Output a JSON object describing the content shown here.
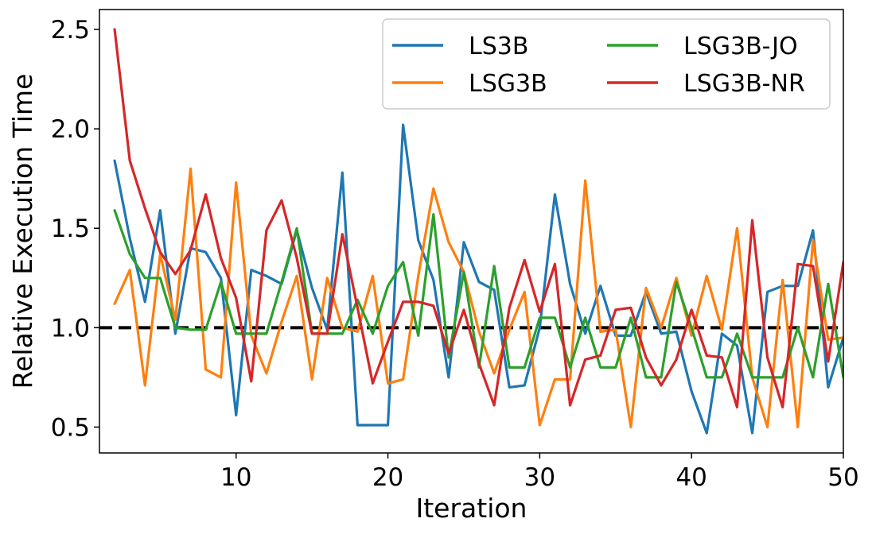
{
  "chart_data": {
    "type": "line",
    "title": "",
    "xlabel": "Iteration",
    "ylabel": "Relative Execution Time",
    "xlim": [
      1,
      50
    ],
    "ylim": [
      0.37,
      2.6
    ],
    "xticks": [
      10,
      20,
      30,
      40,
      50
    ],
    "yticks": [
      0.5,
      1.0,
      1.5,
      2.0,
      2.5
    ],
    "xtick_labels": [
      "10",
      "20",
      "30",
      "40",
      "50"
    ],
    "ytick_labels": [
      "0.5",
      "1.0",
      "1.5",
      "2.0",
      "2.5"
    ],
    "grid": false,
    "legend_position": "top-right",
    "legend_columns": 2,
    "reference_line": {
      "y": 1.0,
      "color": "#000000",
      "style": "dashed"
    },
    "x": [
      2,
      3,
      4,
      5,
      6,
      7,
      8,
      9,
      10,
      11,
      12,
      13,
      14,
      15,
      16,
      17,
      18,
      19,
      20,
      21,
      22,
      23,
      24,
      25,
      26,
      27,
      28,
      29,
      30,
      31,
      32,
      33,
      34,
      35,
      36,
      37,
      38,
      39,
      40,
      41,
      42,
      43,
      44,
      45,
      46,
      47,
      48,
      49,
      50
    ],
    "series": [
      {
        "name": "LS3B",
        "color": "#1f77b4",
        "values": [
          1.84,
          1.45,
          1.13,
          1.59,
          0.97,
          1.4,
          1.38,
          1.25,
          0.56,
          1.29,
          1.26,
          1.22,
          1.49,
          1.2,
          0.99,
          1.78,
          0.51,
          0.51,
          0.51,
          2.02,
          1.44,
          1.24,
          0.75,
          1.43,
          1.23,
          1.19,
          0.7,
          0.71,
          1.0,
          1.67,
          1.22,
          0.97,
          1.21,
          0.96,
          0.96,
          1.18,
          0.97,
          0.98,
          0.68,
          0.47,
          0.97,
          0.91,
          0.47,
          1.18,
          1.21,
          1.21,
          1.49,
          0.7,
          0.95
        ]
      },
      {
        "name": "LSG3B",
        "color": "#ff7f0e",
        "values": [
          1.12,
          1.29,
          0.71,
          1.37,
          1.04,
          1.8,
          0.79,
          0.75,
          1.73,
          0.96,
          0.77,
          1.03,
          1.26,
          0.74,
          1.25,
          1.0,
          0.98,
          1.26,
          0.72,
          0.74,
          1.26,
          1.7,
          1.43,
          1.28,
          0.98,
          0.77,
          0.99,
          1.18,
          0.51,
          0.74,
          0.74,
          1.74,
          0.98,
          0.99,
          0.5,
          1.2,
          1.0,
          1.25,
          0.96,
          1.26,
          0.99,
          1.5,
          0.75,
          0.5,
          1.24,
          0.5,
          1.44,
          0.94,
          0.95
        ]
      },
      {
        "name": "LSG3B-JO",
        "color": "#2ca02c",
        "values": [
          1.59,
          1.37,
          1.25,
          1.25,
          1.0,
          0.99,
          0.99,
          1.23,
          0.97,
          0.97,
          0.97,
          1.23,
          1.5,
          0.97,
          0.97,
          0.97,
          1.14,
          0.97,
          1.21,
          1.33,
          0.96,
          1.57,
          0.85,
          1.28,
          0.8,
          1.31,
          0.8,
          0.8,
          1.05,
          1.05,
          0.8,
          1.05,
          0.8,
          0.8,
          1.05,
          0.75,
          0.75,
          1.23,
          1.0,
          0.75,
          0.75,
          0.97,
          0.75,
          0.75,
          0.75,
          1.0,
          0.75,
          1.22,
          0.75
        ]
      },
      {
        "name": "LSG3B-NR",
        "color": "#d62728",
        "values": [
          2.5,
          1.84,
          1.6,
          1.38,
          1.27,
          1.39,
          1.67,
          1.35,
          1.15,
          0.73,
          1.49,
          1.64,
          1.35,
          0.97,
          0.97,
          1.47,
          1.1,
          0.72,
          0.93,
          1.13,
          1.13,
          1.11,
          0.87,
          1.09,
          0.82,
          0.61,
          1.1,
          1.34,
          1.08,
          1.32,
          0.61,
          0.84,
          0.86,
          1.09,
          1.1,
          0.85,
          0.71,
          0.84,
          1.09,
          0.86,
          0.85,
          0.6,
          1.54,
          0.85,
          0.6,
          1.32,
          1.31,
          0.83,
          1.33
        ]
      }
    ]
  }
}
